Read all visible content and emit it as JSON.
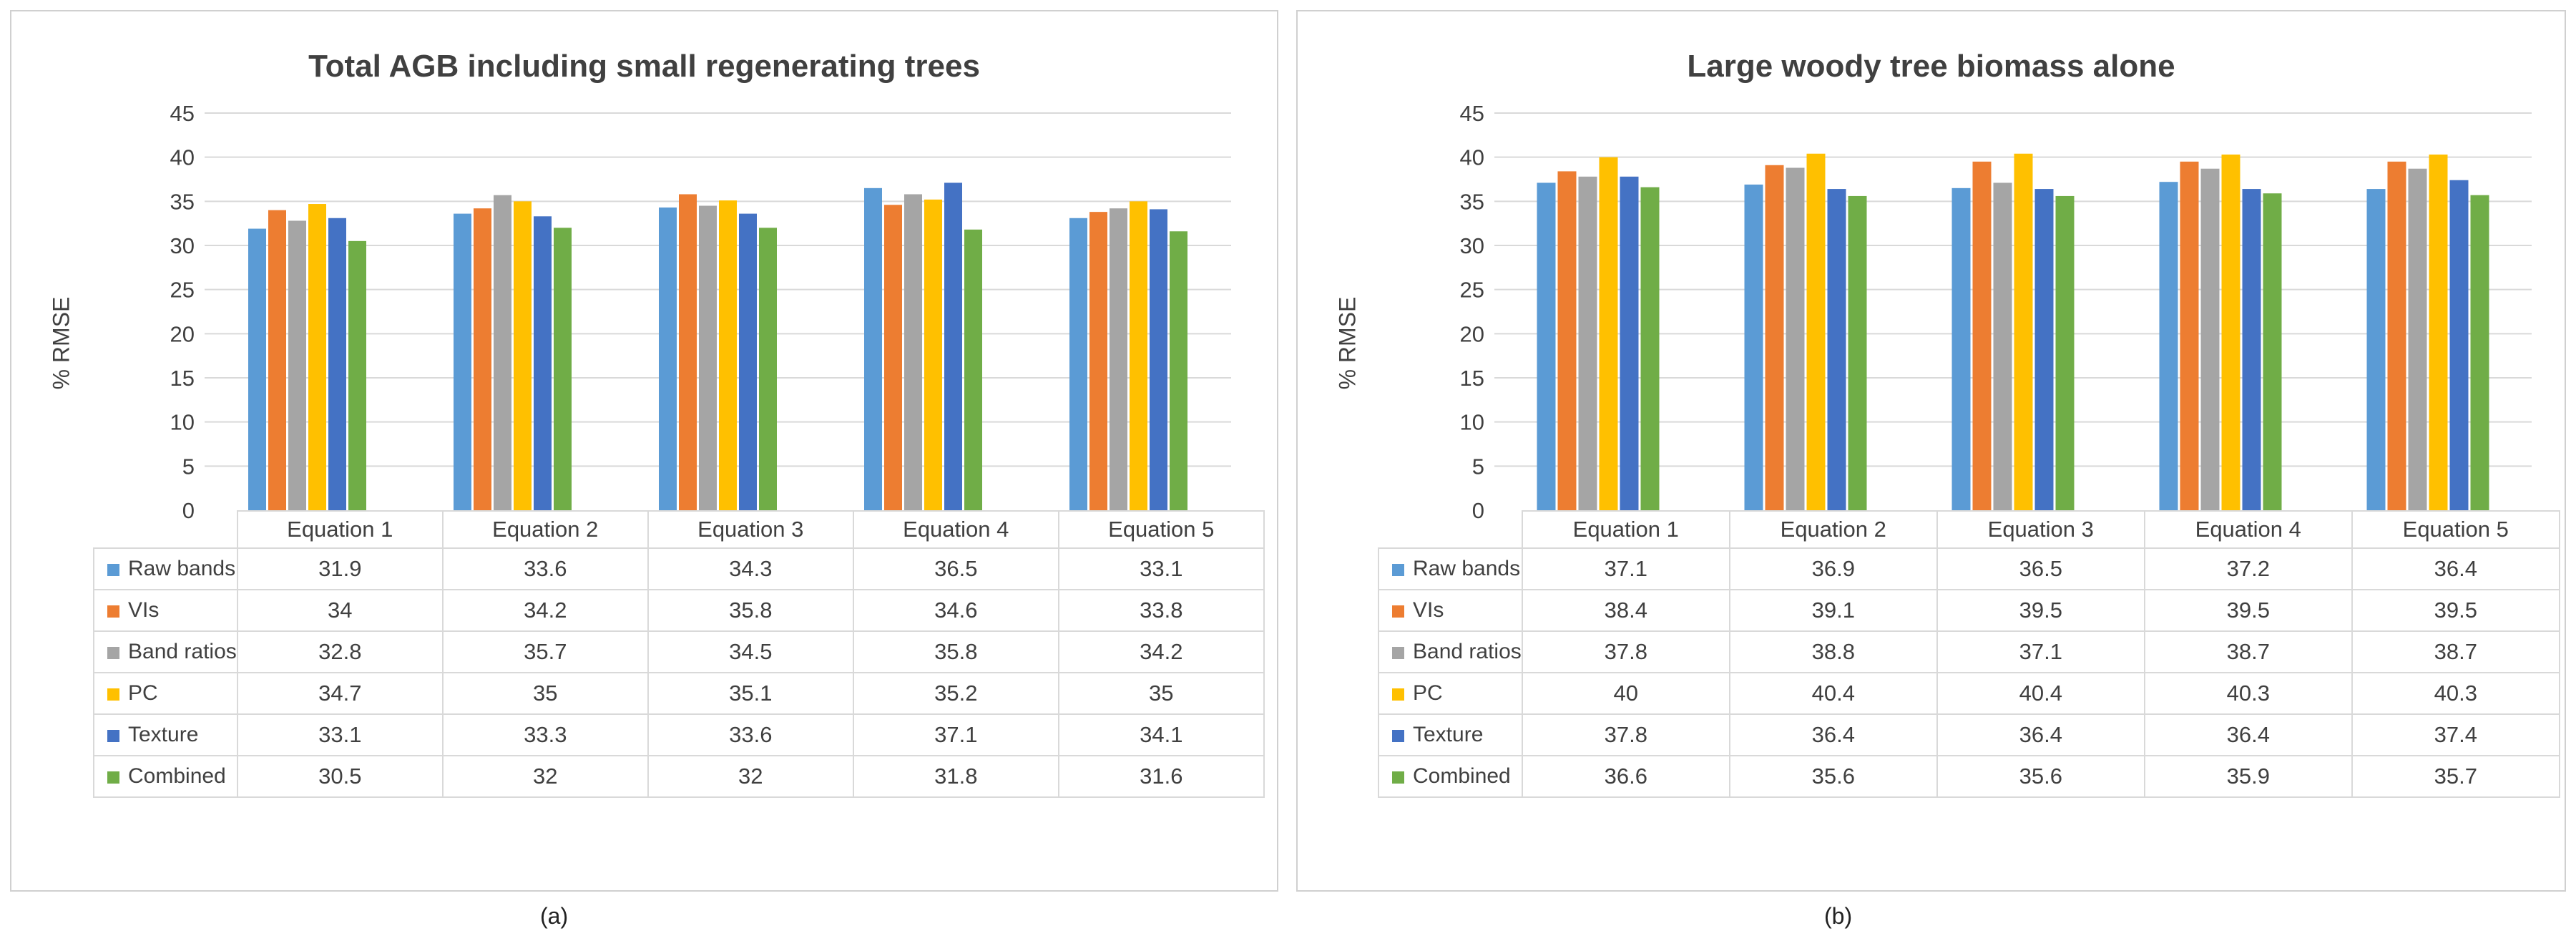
{
  "chart_data": [
    {
      "type": "bar",
      "title": "Total AGB including small regenerating trees",
      "ylabel": "% RMSE",
      "xlabel": "",
      "ylim": [
        0,
        45
      ],
      "yticks": [
        "0",
        "5",
        "10",
        "15",
        "20",
        "25",
        "30",
        "35",
        "40",
        "45"
      ],
      "categories": [
        "Equation 1",
        "Equation 2",
        "Equation 3",
        "Equation 4",
        "Equation 5"
      ],
      "series": [
        {
          "name": "Raw bands",
          "color": "#5b9bd5",
          "values": [
            31.9,
            33.6,
            34.3,
            36.5,
            33.1
          ],
          "labels": [
            "31.9",
            "33.6",
            "34.3",
            "36.5",
            "33.1"
          ]
        },
        {
          "name": "VIs",
          "color": "#ed7d31",
          "values": [
            34,
            34.2,
            35.8,
            34.6,
            33.8
          ],
          "labels": [
            "34",
            "34.2",
            "35.8",
            "34.6",
            "33.8"
          ]
        },
        {
          "name": "Band ratios",
          "color": "#a5a5a5",
          "values": [
            32.8,
            35.7,
            34.5,
            35.8,
            34.2
          ],
          "labels": [
            "32.8",
            "35.7",
            "34.5",
            "35.8",
            "34.2"
          ]
        },
        {
          "name": "PC",
          "color": "#ffc000",
          "values": [
            34.7,
            35,
            35.1,
            35.2,
            35
          ],
          "labels": [
            "34.7",
            "35",
            "35.1",
            "35.2",
            "35"
          ]
        },
        {
          "name": "Texture",
          "color": "#4472c4",
          "values": [
            33.1,
            33.3,
            33.6,
            37.1,
            34.1
          ],
          "labels": [
            "33.1",
            "33.3",
            "33.6",
            "37.1",
            "34.1"
          ]
        },
        {
          "name": "Combined",
          "color": "#70ad47",
          "values": [
            30.5,
            32,
            32,
            31.8,
            31.6
          ],
          "labels": [
            "30.5",
            "32",
            "32",
            "31.8",
            "31.6"
          ]
        }
      ],
      "grid": true,
      "legend": "data table",
      "caption": "(a)"
    },
    {
      "type": "bar",
      "title": "Large woody tree biomass alone",
      "ylabel": "% RMSE",
      "xlabel": "",
      "ylim": [
        0,
        45
      ],
      "yticks": [
        "0",
        "5",
        "10",
        "15",
        "20",
        "25",
        "30",
        "35",
        "40",
        "45"
      ],
      "categories": [
        "Equation 1",
        "Equation 2",
        "Equation 3",
        "Equation 4",
        "Equation 5"
      ],
      "series": [
        {
          "name": "Raw bands",
          "color": "#5b9bd5",
          "values": [
            37.1,
            36.9,
            36.5,
            37.2,
            36.4
          ],
          "labels": [
            "37.1",
            "36.9",
            "36.5",
            "37.2",
            "36.4"
          ]
        },
        {
          "name": "VIs",
          "color": "#ed7d31",
          "values": [
            38.4,
            39.1,
            39.5,
            39.5,
            39.5
          ],
          "labels": [
            "38.4",
            "39.1",
            "39.5",
            "39.5",
            "39.5"
          ]
        },
        {
          "name": "Band ratios",
          "color": "#a5a5a5",
          "values": [
            37.8,
            38.8,
            37.1,
            38.7,
            38.7
          ],
          "labels": [
            "37.8",
            "38.8",
            "37.1",
            "38.7",
            "38.7"
          ]
        },
        {
          "name": "PC",
          "color": "#ffc000",
          "values": [
            40,
            40.4,
            40.4,
            40.3,
            40.3
          ],
          "labels": [
            "40",
            "40.4",
            "40.4",
            "40.3",
            "40.3"
          ]
        },
        {
          "name": "Texture",
          "color": "#4472c4",
          "values": [
            37.8,
            36.4,
            36.4,
            36.4,
            37.4
          ],
          "labels": [
            "37.8",
            "36.4",
            "36.4",
            "36.4",
            "37.4"
          ]
        },
        {
          "name": "Combined",
          "color": "#70ad47",
          "values": [
            36.6,
            35.6,
            35.6,
            35.9,
            35.7
          ],
          "labels": [
            "36.6",
            "35.6",
            "35.6",
            "35.9",
            "35.7"
          ]
        }
      ],
      "grid": true,
      "legend": "data table",
      "caption": "(b)"
    }
  ]
}
